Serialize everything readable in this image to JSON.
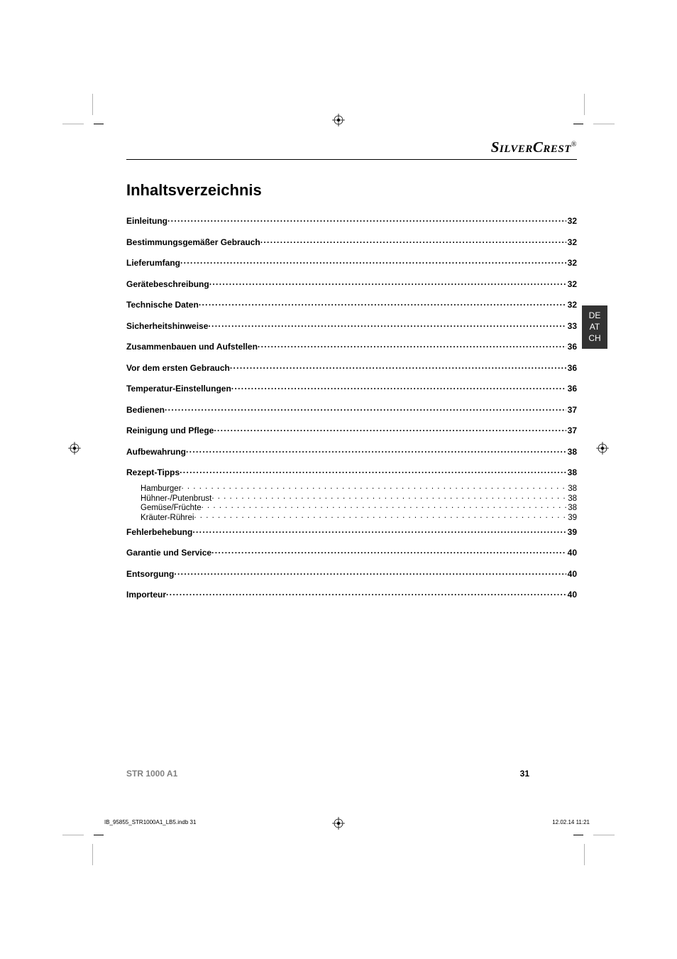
{
  "brand": {
    "part1": "Silver",
    "part2": "Crest",
    "mark": "®"
  },
  "title": "Inhaltsverzeichnis",
  "lang_tab": [
    "DE",
    "AT",
    "CH"
  ],
  "toc": [
    {
      "label": "Einleitung",
      "page": "32",
      "level": 0
    },
    {
      "label": "Bestimmungsgemäßer Gebrauch",
      "page": "32",
      "level": 0
    },
    {
      "label": "Lieferumfang",
      "page": "32",
      "level": 0
    },
    {
      "label": "Gerätebeschreibung",
      "page": "32",
      "level": 0
    },
    {
      "label": "Technische Daten",
      "page": "32",
      "level": 0
    },
    {
      "label": "Sicherheitshinweise",
      "page": "33",
      "level": 0
    },
    {
      "label": "Zusammenbauen und Aufstellen",
      "page": "36",
      "level": 0
    },
    {
      "label": "Vor dem ersten Gebrauch",
      "page": "36",
      "level": 0
    },
    {
      "label": "Temperatur-Einstellungen",
      "page": "36",
      "level": 0
    },
    {
      "label": "Bedienen",
      "page": "37",
      "level": 0
    },
    {
      "label": "Reinigung und Pflege",
      "page": "37",
      "level": 0
    },
    {
      "label": "Aufbewahrung",
      "page": "38",
      "level": 0
    },
    {
      "label": "Rezept-Tipps",
      "page": "38",
      "level": 0
    },
    {
      "label": "Hamburger",
      "page": "38",
      "level": 1
    },
    {
      "label": "Hühner-/Putenbrust",
      "page": "38",
      "level": 1
    },
    {
      "label": "Gemüse/Früchte",
      "page": "38",
      "level": 1
    },
    {
      "label": "Kräuter-Rührei",
      "page": "39",
      "level": 1
    },
    {
      "label": "Fehlerbehebung",
      "page": "39",
      "level": 0
    },
    {
      "label": "Garantie und Service",
      "page": "40",
      "level": 0
    },
    {
      "label": "Entsorgung",
      "page": "40",
      "level": 0
    },
    {
      "label": "Importeur",
      "page": "40",
      "level": 0
    }
  ],
  "footer": {
    "model": "STR 1000 A1",
    "page_number": "31"
  },
  "slug": {
    "file": "IB_95855_STR1000A1_LB5.indb   31",
    "datetime": "12.02.14   11:21"
  }
}
